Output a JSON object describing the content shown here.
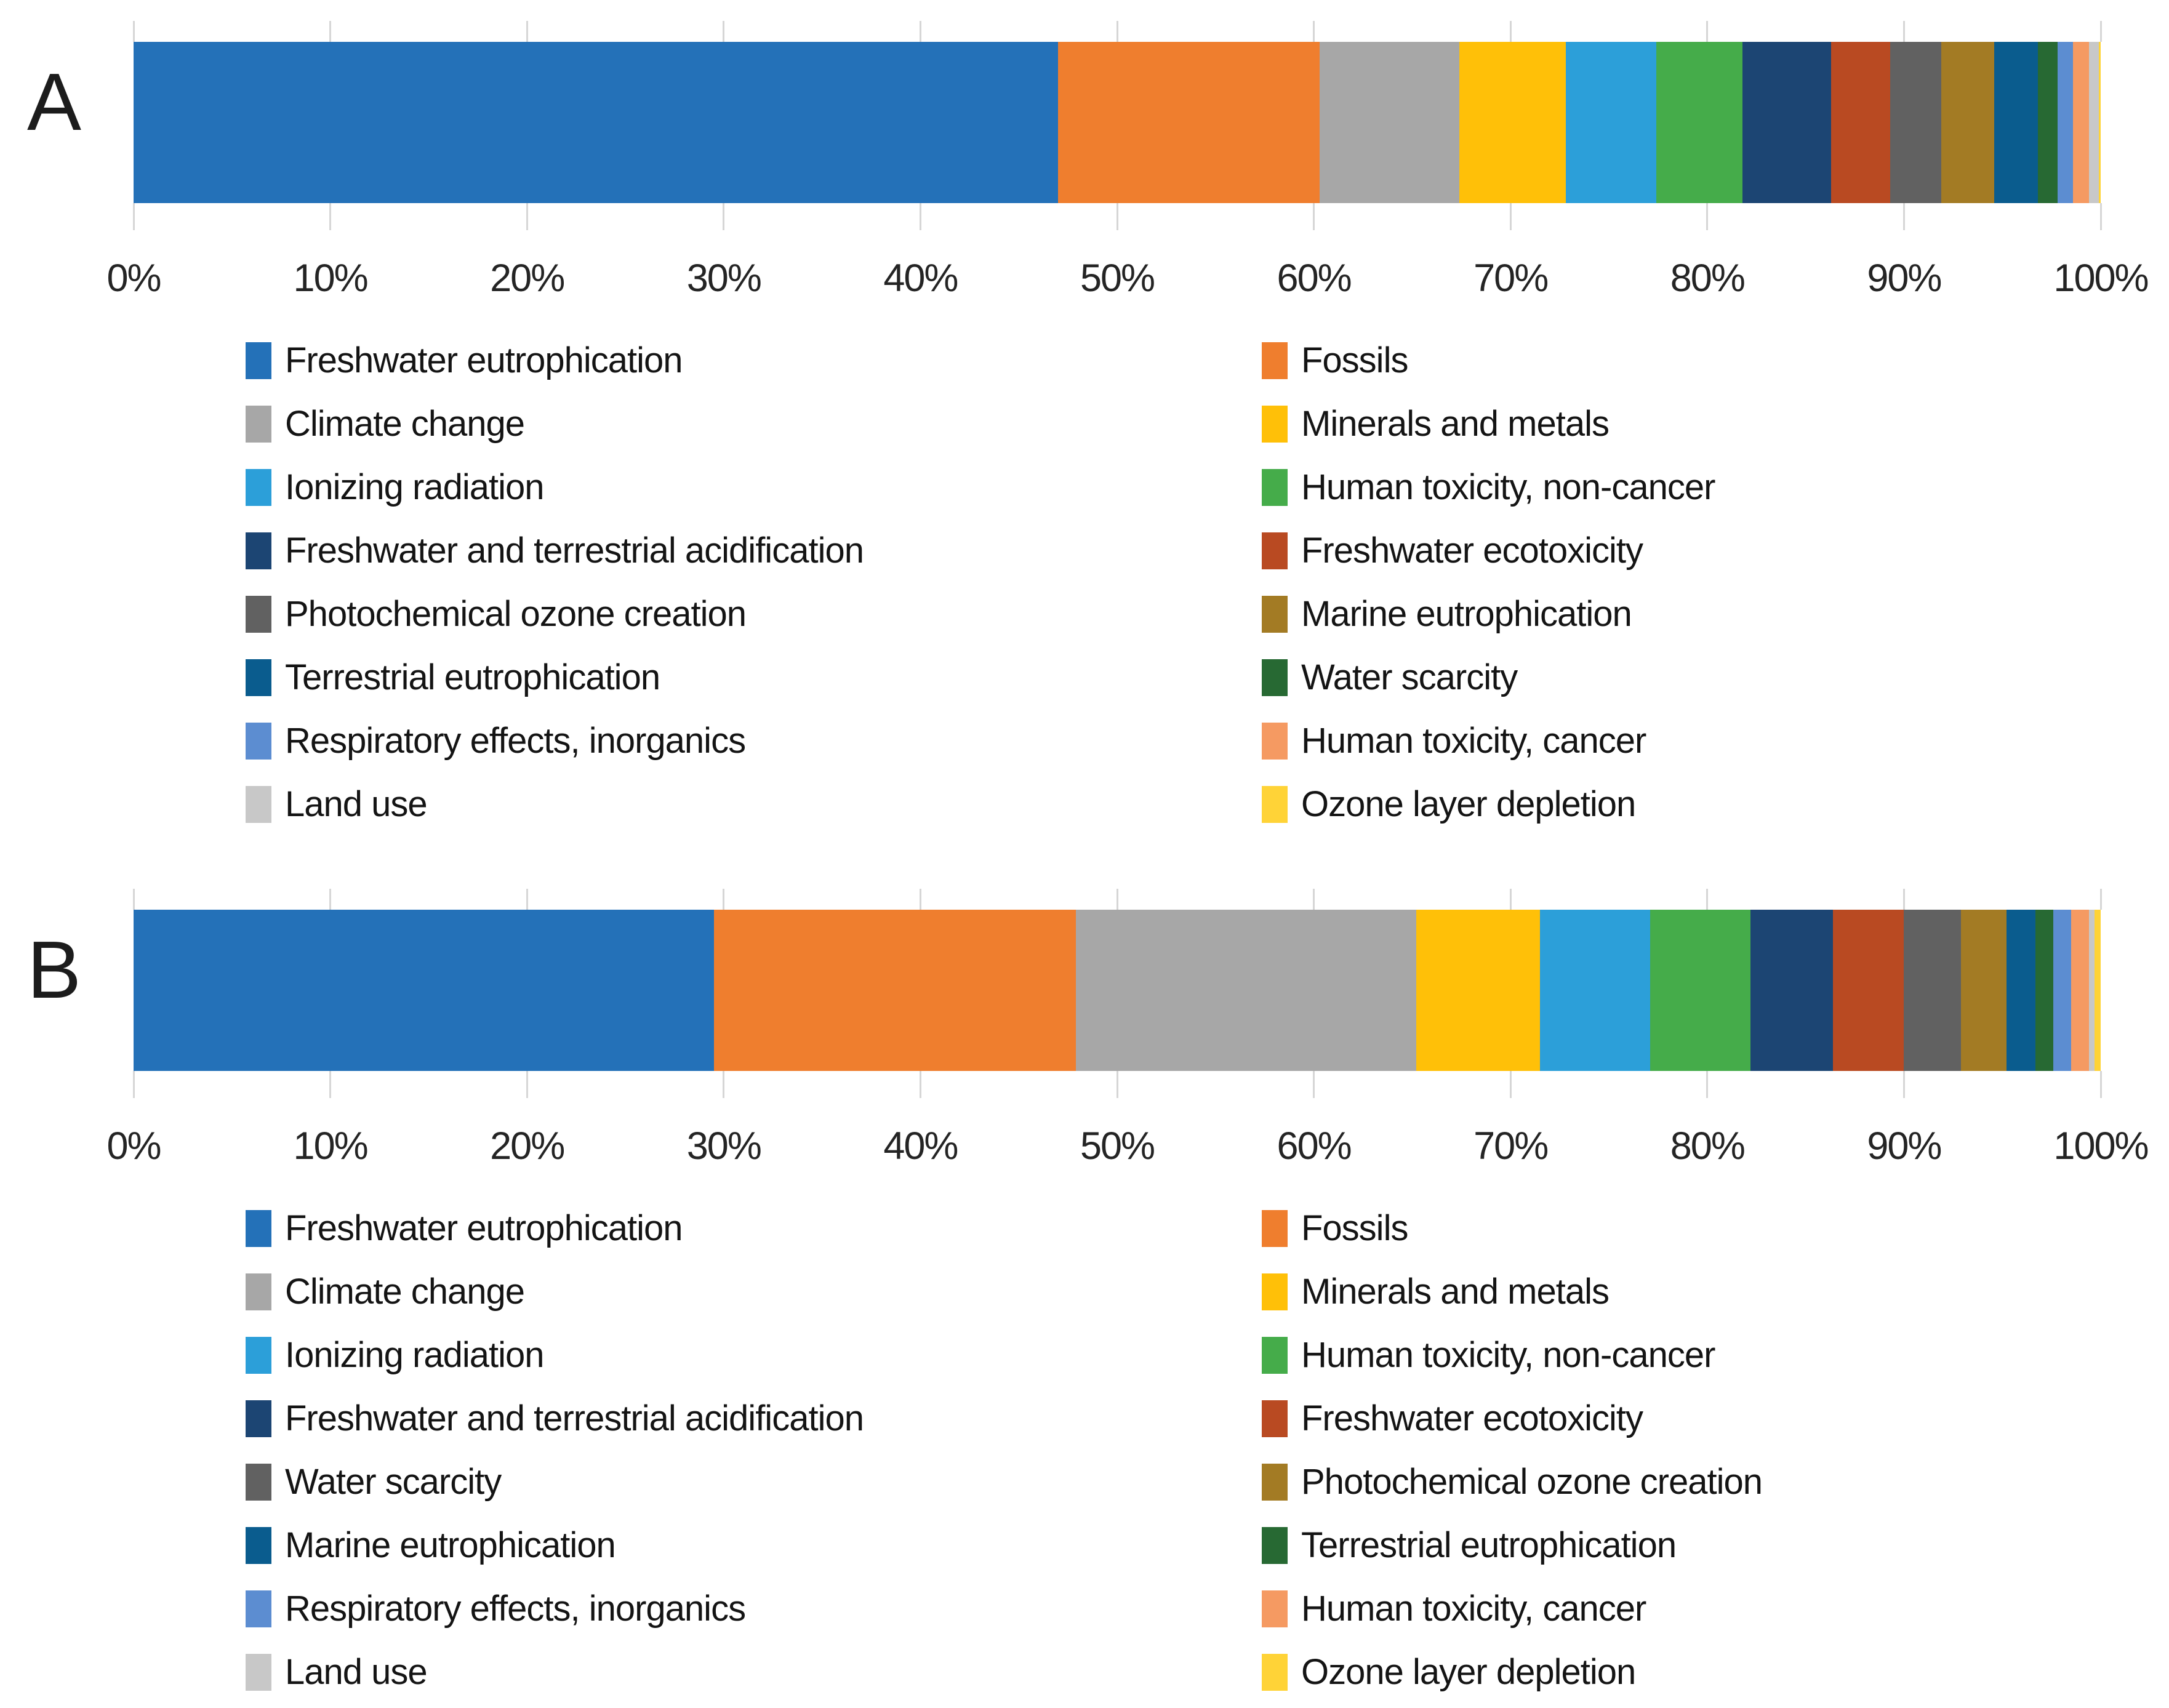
{
  "chart_data": [
    {
      "panel": "A",
      "type": "stacked-bar-horizontal",
      "x_axis": {
        "min": 0,
        "max": 100,
        "unit": "%",
        "grid": "ticks-outside-bar",
        "tick_labels": [
          "0%",
          "10%",
          "20%",
          "30%",
          "40%",
          "50%",
          "60%",
          "70%",
          "80%",
          "90%",
          "100%"
        ]
      },
      "series": [
        {
          "name": "Freshwater eutrophication",
          "color": "#2471B8",
          "value": 47.0
        },
        {
          "name": "Fossils",
          "color": "#EF7E2E",
          "value": 13.3
        },
        {
          "name": "Climate change",
          "color": "#A7A7A7",
          "value": 7.1
        },
        {
          "name": "Minerals and metals",
          "color": "#FFC008",
          "value": 5.4
        },
        {
          "name": "Ionizing radiation",
          "color": "#2C9FD9",
          "value": 4.6
        },
        {
          "name": "Human toxicity, non-cancer",
          "color": "#45AC4A",
          "value": 4.4
        },
        {
          "name": "Freshwater and terrestrial acidification",
          "color": "#1C4573",
          "value": 4.5
        },
        {
          "name": "Freshwater ecotoxicity",
          "color": "#B94A22",
          "value": 3.0
        },
        {
          "name": "Photochemical ozone creation",
          "color": "#616161",
          "value": 2.6
        },
        {
          "name": "Marine eutrophication",
          "color": "#A37B24",
          "value": 2.7
        },
        {
          "name": "Terrestrial eutrophication",
          "color": "#0A5C8E",
          "value": 2.2
        },
        {
          "name": "Water scarcity",
          "color": "#276933",
          "value": 1.0
        },
        {
          "name": "Respiratory effects, inorganics",
          "color": "#5C8DD1",
          "value": 0.8
        },
        {
          "name": "Human toxicity, cancer",
          "color": "#F59A62",
          "value": 0.8
        },
        {
          "name": "Land use",
          "color": "#C8C8C8",
          "value": 0.5
        },
        {
          "name": "Ozone layer depletion",
          "color": "#FFD337",
          "value": 0.1
        }
      ],
      "legend": {
        "position": "below",
        "left_column": [
          {
            "label": "Freshwater eutrophication",
            "color": "#2471B8"
          },
          {
            "label": "Climate change",
            "color": "#A7A7A7"
          },
          {
            "label": "Ionizing radiation",
            "color": "#2C9FD9"
          },
          {
            "label": "Freshwater and terrestrial acidification",
            "color": "#1C4573"
          },
          {
            "label": "Photochemical ozone creation",
            "color": "#616161"
          },
          {
            "label": "Terrestrial eutrophication",
            "color": "#0A5C8E"
          },
          {
            "label": "Respiratory effects, inorganics",
            "color": "#5C8DD1"
          },
          {
            "label": "Land use",
            "color": "#C8C8C8"
          }
        ],
        "right_column": [
          {
            "label": "Fossils",
            "color": "#EF7E2E"
          },
          {
            "label": "Minerals and metals",
            "color": "#FFC008"
          },
          {
            "label": "Human toxicity, non-cancer",
            "color": "#45AC4A"
          },
          {
            "label": "Freshwater ecotoxicity",
            "color": "#B94A22"
          },
          {
            "label": "Marine eutrophication",
            "color": "#A37B24"
          },
          {
            "label": "Water scarcity",
            "color": "#276933"
          },
          {
            "label": "Human toxicity, cancer",
            "color": "#F59A62"
          },
          {
            "label": "Ozone layer depletion",
            "color": "#FFD337"
          }
        ]
      }
    },
    {
      "panel": "B",
      "type": "stacked-bar-horizontal",
      "x_axis": {
        "min": 0,
        "max": 100,
        "unit": "%",
        "grid": "ticks-outside-bar",
        "tick_labels": [
          "0%",
          "10%",
          "20%",
          "30%",
          "40%",
          "50%",
          "60%",
          "70%",
          "80%",
          "90%",
          "100%"
        ]
      },
      "series": [
        {
          "name": "Freshwater eutrophication",
          "color": "#2471B8",
          "value": 29.5
        },
        {
          "name": "Fossils",
          "color": "#EF7E2E",
          "value": 18.4
        },
        {
          "name": "Climate change",
          "color": "#A7A7A7",
          "value": 17.3
        },
        {
          "name": "Minerals and metals",
          "color": "#FFC008",
          "value": 6.3
        },
        {
          "name": "Ionizing radiation",
          "color": "#2C9FD9",
          "value": 5.6
        },
        {
          "name": "Human toxicity, non-cancer",
          "color": "#45AC4A",
          "value": 5.1
        },
        {
          "name": "Freshwater and terrestrial acidification",
          "color": "#1C4573",
          "value": 4.2
        },
        {
          "name": "Freshwater ecotoxicity",
          "color": "#B94A22",
          "value": 3.6
        },
        {
          "name": "Water scarcity",
          "color": "#616161",
          "value": 2.9
        },
        {
          "name": "Photochemical ozone creation",
          "color": "#A37B24",
          "value": 2.3
        },
        {
          "name": "Marine eutrophication",
          "color": "#0A5C8E",
          "value": 1.5
        },
        {
          "name": "Terrestrial eutrophication",
          "color": "#276933",
          "value": 0.9
        },
        {
          "name": "Respiratory effects, inorganics",
          "color": "#5C8DD1",
          "value": 0.9
        },
        {
          "name": "Human toxicity, cancer",
          "color": "#F59A62",
          "value": 0.9
        },
        {
          "name": "Land use",
          "color": "#C8C8C8",
          "value": 0.3
        },
        {
          "name": "Ozone layer depletion",
          "color": "#FFD337",
          "value": 0.3
        }
      ],
      "legend": {
        "position": "below",
        "left_column": [
          {
            "label": "Freshwater eutrophication",
            "color": "#2471B8"
          },
          {
            "label": "Climate change",
            "color": "#A7A7A7"
          },
          {
            "label": "Ionizing radiation",
            "color": "#2C9FD9"
          },
          {
            "label": "Freshwater and terrestrial acidification",
            "color": "#1C4573"
          },
          {
            "label": "Water scarcity",
            "color": "#616161"
          },
          {
            "label": "Marine eutrophication",
            "color": "#0A5C8E"
          },
          {
            "label": "Respiratory effects, inorganics",
            "color": "#5C8DD1"
          },
          {
            "label": "Land use",
            "color": "#C8C8C8"
          }
        ],
        "right_column": [
          {
            "label": "Fossils",
            "color": "#EF7E2E"
          },
          {
            "label": "Minerals and metals",
            "color": "#FFC008"
          },
          {
            "label": "Human toxicity, non-cancer",
            "color": "#45AC4A"
          },
          {
            "label": "Freshwater ecotoxicity",
            "color": "#B94A22"
          },
          {
            "label": "Photochemical ozone creation",
            "color": "#A37B24"
          },
          {
            "label": "Terrestrial eutrophication",
            "color": "#276933"
          },
          {
            "label": "Human toxicity, cancer",
            "color": "#F59A62"
          },
          {
            "label": "Ozone layer depletion",
            "color": "#FFD337"
          }
        ]
      }
    }
  ]
}
